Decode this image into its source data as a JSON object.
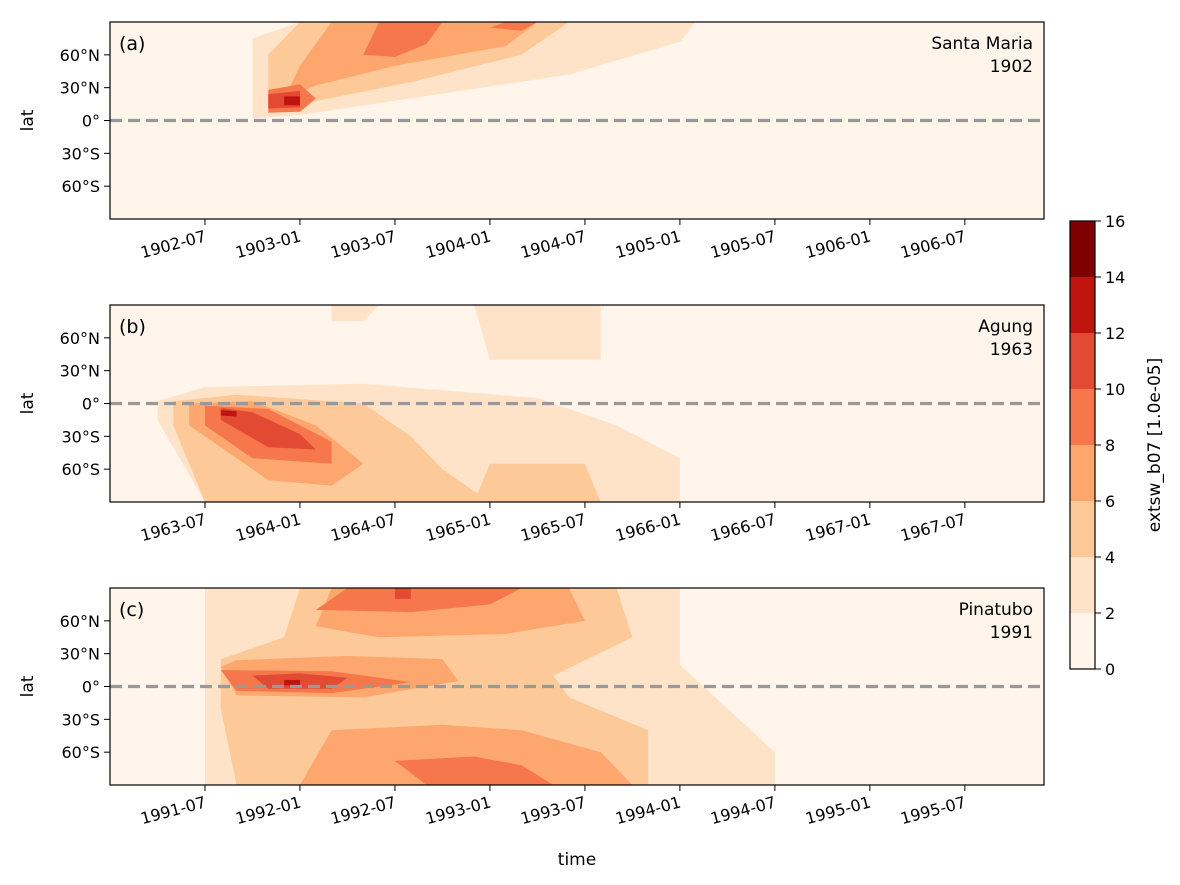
{
  "chart_data": {
    "type": "heatmap",
    "xlabel": "time",
    "ylabel": "lat",
    "colorbar": {
      "label": "extsw_b07 [1.0e-05]",
      "levels": [
        0,
        2,
        4,
        6,
        8,
        10,
        12,
        14,
        16
      ],
      "ticks": [
        "0",
        "2",
        "4",
        "6",
        "8",
        "10",
        "12",
        "14",
        "16"
      ],
      "colors": [
        "#fff5eb",
        "#fee3c8",
        "#fdc998",
        "#fda66e",
        "#f5774b",
        "#e24a33",
        "#c0140e",
        "#7f0000"
      ]
    },
    "lat_range": [
      -90,
      90
    ],
    "ytick_labels": [
      "60°N",
      "30°N",
      "0°",
      "30°S",
      "60°S"
    ],
    "ytick_values": [
      60,
      30,
      0,
      -30,
      -60
    ],
    "reference_line": {
      "lat": 0,
      "style": "dashed",
      "color": "#999999"
    },
    "panels": [
      {
        "label": "(a)",
        "name": "Santa Maria",
        "year": "1902",
        "x_range": [
          "1902-01",
          "1906-12"
        ],
        "xtick_labels": [
          "1902-07",
          "1903-01",
          "1903-07",
          "1904-01",
          "1904-07",
          "1905-01",
          "1905-07",
          "1906-01",
          "1906-07"
        ],
        "xtick_values": [
          "1902-07",
          "1903-01",
          "1903-07",
          "1904-01",
          "1904-07",
          "1905-01",
          "1905-07",
          "1906-01",
          "1906-07"
        ],
        "contours": [
          {
            "level": 2,
            "points": [
              [
                "1902-10",
                75
              ],
              [
                "1903-01",
                90
              ],
              [
                "1905-02",
                90
              ],
              [
                "1905-01",
                72
              ],
              [
                "1904-06",
                42
              ],
              [
                "1903-07",
                18
              ],
              [
                "1903-01",
                5
              ],
              [
                "1902-10",
                2
              ]
            ]
          },
          {
            "level": 4,
            "points": [
              [
                "1902-11",
                60
              ],
              [
                "1903-01",
                90
              ],
              [
                "1904-06",
                90
              ],
              [
                "1904-03",
                60
              ],
              [
                "1903-08",
                35
              ],
              [
                "1903-01",
                15
              ],
              [
                "1902-11",
                10
              ]
            ]
          },
          {
            "level": 6,
            "points": [
              [
                "1903-01",
                50
              ],
              [
                "1903-03",
                90
              ],
              [
                "1904-04",
                90
              ],
              [
                "1904-02",
                68
              ],
              [
                "1903-07",
                50
              ],
              [
                "1903-02",
                32
              ],
              [
                "1902-12",
                20
              ]
            ]
          },
          {
            "level": 8,
            "points": [
              [
                "1902-11",
                28
              ],
              [
                "1903-01",
                33
              ],
              [
                "1903-02",
                20
              ],
              [
                "1903-01",
                8
              ],
              [
                "1902-11",
                7
              ]
            ]
          },
          {
            "level": 8,
            "points": [
              [
                "1903-05",
                60
              ],
              [
                "1903-06",
                90
              ],
              [
                "1903-10",
                90
              ],
              [
                "1903-09",
                70
              ],
              [
                "1903-07",
                58
              ]
            ]
          },
          {
            "level": 8,
            "points": [
              [
                "1904-01",
                85
              ],
              [
                "1904-02",
                90
              ],
              [
                "1904-04",
                90
              ],
              [
                "1904-03",
                82
              ]
            ]
          },
          {
            "level": 10,
            "points": [
              [
                "1902-11",
                24
              ],
              [
                "1903-01",
                27
              ],
              [
                "1903-01",
                12
              ],
              [
                "1902-11",
                11
              ]
            ]
          },
          {
            "level": 12,
            "points": [
              [
                "1902-12",
                22
              ],
              [
                "1903-01",
                22
              ],
              [
                "1903-01",
                14
              ],
              [
                "1902-12",
                14
              ]
            ]
          }
        ]
      },
      {
        "label": "(b)",
        "name": "Agung",
        "year": "1963",
        "x_range": [
          "1963-01",
          "1967-12"
        ],
        "xtick_labels": [
          "1963-07",
          "1964-01",
          "1964-07",
          "1965-01",
          "1965-07",
          "1966-01",
          "1966-07",
          "1967-01",
          "1967-07"
        ],
        "xtick_values": [
          "1963-07",
          "1964-01",
          "1964-07",
          "1965-01",
          "1965-07",
          "1966-01",
          "1966-07",
          "1967-01",
          "1967-07"
        ],
        "contours": [
          {
            "level": 2,
            "points": [
              [
                "1963-04",
                2
              ],
              [
                "1963-07",
                15
              ],
              [
                "1964-05",
                18
              ],
              [
                "1965-04",
                5
              ],
              [
                "1965-09",
                -20
              ],
              [
                "1966-01",
                -50
              ],
              [
                "1966-01",
                -90
              ],
              [
                "1963-07",
                -90
              ],
              [
                "1963-04",
                -15
              ]
            ]
          },
          {
            "level": 2,
            "points": [
              [
                "1964-03",
                75
              ],
              [
                "1964-03",
                90
              ],
              [
                "1964-06",
                90
              ],
              [
                "1964-05",
                75
              ]
            ]
          },
          {
            "level": 2,
            "points": [
              [
                "1965-01",
                40
              ],
              [
                "1964-12",
                90
              ],
              [
                "1965-08",
                90
              ],
              [
                "1965-08",
                40
              ]
            ]
          },
          {
            "level": 4,
            "points": [
              [
                "1963-05",
                2
              ],
              [
                "1963-09",
                8
              ],
              [
                "1964-05",
                0
              ],
              [
                "1964-08",
                -30
              ],
              [
                "1964-10",
                -60
              ],
              [
                "1965-01",
                -90
              ],
              [
                "1963-07",
                -90
              ],
              [
                "1963-05",
                -20
              ]
            ]
          },
          {
            "level": 4,
            "points": [
              [
                "1965-01",
                -55
              ],
              [
                "1964-12",
                -90
              ],
              [
                "1965-08",
                -90
              ],
              [
                "1965-07",
                -55
              ]
            ]
          },
          {
            "level": 6,
            "points": [
              [
                "1963-06",
                0
              ],
              [
                "1963-10",
                2
              ],
              [
                "1964-02",
                -20
              ],
              [
                "1964-05",
                -55
              ],
              [
                "1964-03",
                -75
              ],
              [
                "1963-11",
                -70
              ],
              [
                "1963-06",
                -20
              ]
            ]
          },
          {
            "level": 8,
            "points": [
              [
                "1963-07",
                -2
              ],
              [
                "1963-11",
                -5
              ],
              [
                "1964-03",
                -35
              ],
              [
                "1964-03",
                -55
              ],
              [
                "1963-10",
                -50
              ],
              [
                "1963-07",
                -20
              ]
            ]
          },
          {
            "level": 10,
            "points": [
              [
                "1963-08",
                -4
              ],
              [
                "1963-10",
                -8
              ],
              [
                "1964-01",
                -28
              ],
              [
                "1964-02",
                -42
              ],
              [
                "1963-11",
                -40
              ],
              [
                "1963-08",
                -15
              ]
            ]
          },
          {
            "level": 12,
            "points": [
              [
                "1963-08",
                -6
              ],
              [
                "1963-09",
                -7
              ],
              [
                "1963-09",
                -12
              ],
              [
                "1963-08",
                -11
              ]
            ]
          }
        ]
      },
      {
        "label": "(c)",
        "name": "Pinatubo",
        "year": "1991",
        "x_range": [
          "1991-01",
          "1995-12"
        ],
        "xtick_labels": [
          "1991-07",
          "1992-01",
          "1992-07",
          "1993-01",
          "1993-07",
          "1994-01",
          "1994-07",
          "1995-01",
          "1995-07"
        ],
        "xtick_values": [
          "1991-07",
          "1992-01",
          "1992-07",
          "1993-01",
          "1993-07",
          "1994-01",
          "1994-07",
          "1995-01",
          "1995-07"
        ],
        "contours": [
          {
            "level": 2,
            "points": [
              [
                "1991-07",
                90
              ],
              [
                "1994-01",
                90
              ],
              [
                "1994-01",
                20
              ],
              [
                "1994-07",
                -60
              ],
              [
                "1994-07",
                -90
              ],
              [
                "1991-07",
                -90
              ]
            ]
          },
          {
            "level": 4,
            "points": [
              [
                "1991-08",
                25
              ],
              [
                "1991-08",
                -20
              ],
              [
                "1991-09",
                -90
              ],
              [
                "1993-11",
                -90
              ],
              [
                "1993-11",
                -40
              ],
              [
                "1993-06",
                -10
              ],
              [
                "1993-05",
                10
              ],
              [
                "1993-10",
                45
              ],
              [
                "1993-09",
                90
              ],
              [
                "1992-01",
                90
              ],
              [
                "1991-12",
                45
              ]
            ]
          },
          {
            "level": 6,
            "points": [
              [
                "1991-08",
                18
              ],
              [
                "1991-09",
                -8
              ],
              [
                "1992-05",
                -10
              ],
              [
                "1992-11",
                5
              ],
              [
                "1992-10",
                25
              ],
              [
                "1992-04",
                28
              ],
              [
                "1991-09",
                24
              ]
            ]
          },
          {
            "level": 6,
            "points": [
              [
                "1992-02",
                55
              ],
              [
                "1992-03",
                90
              ],
              [
                "1993-06",
                90
              ],
              [
                "1993-07",
                60
              ],
              [
                "1993-02",
                48
              ],
              [
                "1992-06",
                45
              ]
            ]
          },
          {
            "level": 6,
            "points": [
              [
                "1992-03",
                -40
              ],
              [
                "1992-01",
                -90
              ],
              [
                "1993-10",
                -90
              ],
              [
                "1993-08",
                -60
              ],
              [
                "1993-03",
                -40
              ],
              [
                "1992-10",
                -35
              ]
            ]
          },
          {
            "level": 8,
            "points": [
              [
                "1991-08",
                15
              ],
              [
                "1991-09",
                -4
              ],
              [
                "1992-03",
                -6
              ],
              [
                "1992-08",
                4
              ],
              [
                "1992-03",
                14
              ]
            ]
          },
          {
            "level": 8,
            "points": [
              [
                "1992-02",
                70
              ],
              [
                "1992-04",
                90
              ],
              [
                "1993-03",
                90
              ],
              [
                "1993-01",
                75
              ],
              [
                "1992-08",
                68
              ]
            ]
          },
          {
            "level": 8,
            "points": [
              [
                "1992-07",
                -68
              ],
              [
                "1992-09",
                -90
              ],
              [
                "1993-05",
                -90
              ],
              [
                "1993-03",
                -72
              ],
              [
                "1992-12",
                -64
              ]
            ]
          },
          {
            "level": 10,
            "points": [
              [
                "1991-10",
                10
              ],
              [
                "1991-11",
                -2
              ],
              [
                "1992-03",
                -2
              ],
              [
                "1992-04",
                8
              ],
              [
                "1992-01",
                12
              ]
            ]
          },
          {
            "level": 10,
            "points": [
              [
                "1992-07",
                80
              ],
              [
                "1992-07",
                90
              ],
              [
                "1992-08",
                90
              ],
              [
                "1992-08",
                80
              ]
            ]
          },
          {
            "level": 12,
            "points": [
              [
                "1991-12",
                6
              ],
              [
                "1991-12",
                1
              ],
              [
                "1992-01",
                1
              ],
              [
                "1992-01",
                6
              ]
            ]
          }
        ]
      }
    ]
  }
}
